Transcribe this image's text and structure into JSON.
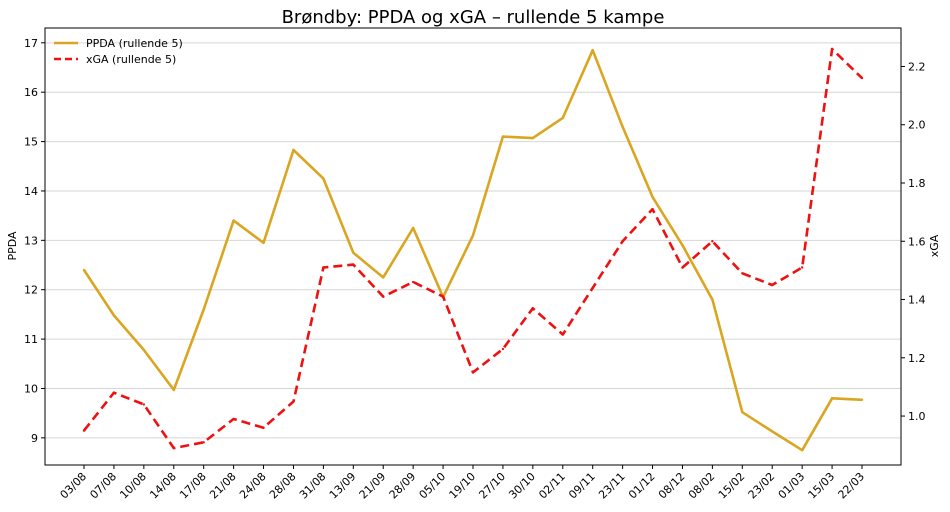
{
  "chart_data": {
    "type": "line",
    "title": "Brøndby: PPDA og xGA – rullende 5 kampe",
    "xlabel": "",
    "ylabel_left": "PPDA",
    "ylabel_right": "xGA",
    "categories": [
      "03/08",
      "07/08",
      "10/08",
      "14/08",
      "17/08",
      "21/08",
      "24/08",
      "28/08",
      "31/08",
      "13/09",
      "21/09",
      "28/09",
      "05/10",
      "19/10",
      "27/10",
      "30/10",
      "02/11",
      "09/11",
      "23/11",
      "01/12",
      "08/12",
      "08/02",
      "15/02",
      "23/02",
      "01/03",
      "15/03",
      "22/03"
    ],
    "series": [
      {
        "name": "PPDA (rullende 5)",
        "axis": "left",
        "color": "#DAA520",
        "dash": "solid",
        "values": [
          12.4,
          11.48,
          10.78,
          9.97,
          11.6,
          13.4,
          12.95,
          14.83,
          14.25,
          12.75,
          12.25,
          13.25,
          11.85,
          13.1,
          15.1,
          15.07,
          15.48,
          16.85,
          15.3,
          13.88,
          12.9,
          11.8,
          9.52,
          9.13,
          8.75,
          9.8,
          9.77
        ]
      },
      {
        "name": "xGA (rullende 5)",
        "axis": "right",
        "color": "#EE1111",
        "dash": "dashed",
        "values": [
          0.95,
          1.08,
          1.04,
          0.89,
          0.91,
          0.99,
          0.96,
          1.05,
          1.51,
          1.52,
          1.41,
          1.46,
          1.41,
          1.15,
          1.23,
          1.37,
          1.28,
          1.44,
          1.6,
          1.71,
          1.51,
          1.6,
          1.49,
          1.45,
          1.51,
          2.26,
          2.16
        ]
      }
    ],
    "ylim_left": [
      8.45,
      17.3
    ],
    "yticks_left": [
      9,
      10,
      11,
      12,
      13,
      14,
      15,
      16,
      17
    ],
    "ylim_right": [
      0.832,
      2.332
    ],
    "yticks_right": [
      "1.0",
      "1.2",
      "1.4",
      "1.6",
      "1.8",
      "2.0",
      "2.2"
    ],
    "grid": "horizontal",
    "legend": "top-left"
  }
}
